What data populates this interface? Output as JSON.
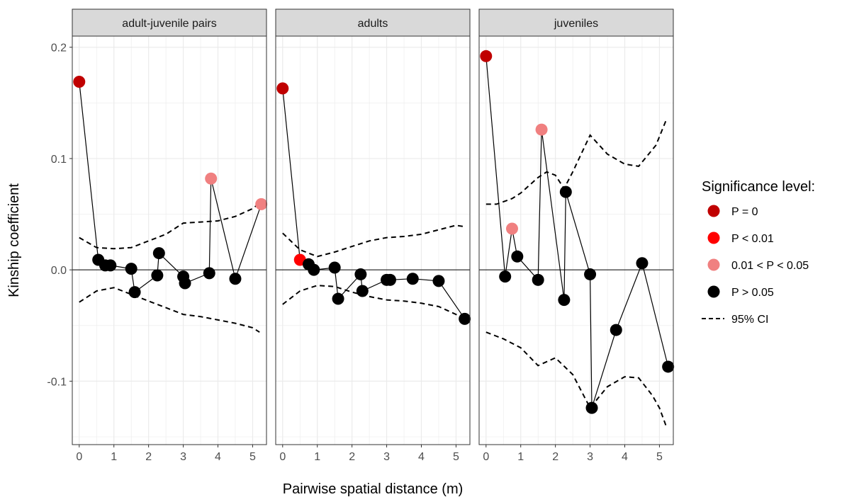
{
  "chart_data": {
    "type": "scatter",
    "xlabel": "Pairwise spatial distance (m)",
    "ylabel": "Kinship coefficient",
    "xlim": [
      -0.2,
      5.4
    ],
    "ylim": [
      -0.157,
      0.21
    ],
    "x_ticks": [
      0,
      1,
      2,
      3,
      4,
      5
    ],
    "x_tick_labels": [
      "0",
      "1",
      "2",
      "3",
      "4",
      "5"
    ],
    "y_ticks": [
      0.2,
      0.1,
      0.0,
      -0.1
    ],
    "y_tick_labels": [
      "0.2",
      "0.1",
      "0.0",
      "-0.1"
    ],
    "grid": true,
    "reference_line_y": 0,
    "legend": {
      "title": "Significance level:",
      "position": "right",
      "entries": [
        {
          "label": "P = 0",
          "color": "#c00000",
          "key": "p0"
        },
        {
          "label": "P < 0.01",
          "color": "#ff0000",
          "key": "p001"
        },
        {
          "label": "0.01 < P < 0.05",
          "color": "#f08080",
          "key": "p005"
        },
        {
          "label": "P > 0.05",
          "color": "#000000",
          "key": "ns"
        },
        {
          "label": "95% CI",
          "color": "#000000",
          "key": "ci"
        }
      ]
    },
    "panels": [
      {
        "title": "adult-juvenile pairs",
        "points": [
          {
            "x": 0.0,
            "y": 0.169,
            "sig": "p0"
          },
          {
            "x": 0.55,
            "y": 0.009,
            "sig": "ns"
          },
          {
            "x": 0.75,
            "y": 0.004,
            "sig": "ns"
          },
          {
            "x": 0.9,
            "y": 0.004,
            "sig": "ns"
          },
          {
            "x": 1.5,
            "y": 0.001,
            "sig": "ns"
          },
          {
            "x": 1.6,
            "y": -0.02,
            "sig": "ns"
          },
          {
            "x": 2.25,
            "y": -0.005,
            "sig": "ns"
          },
          {
            "x": 2.3,
            "y": 0.015,
            "sig": "ns"
          },
          {
            "x": 3.0,
            "y": -0.006,
            "sig": "ns"
          },
          {
            "x": 3.05,
            "y": -0.012,
            "sig": "ns"
          },
          {
            "x": 3.75,
            "y": -0.003,
            "sig": "ns"
          },
          {
            "x": 3.8,
            "y": 0.082,
            "sig": "p005"
          },
          {
            "x": 4.5,
            "y": -0.008,
            "sig": "ns"
          },
          {
            "x": 5.25,
            "y": 0.059,
            "sig": "p005"
          }
        ],
        "ci_upper": [
          [
            0.0,
            0.029
          ],
          [
            0.5,
            0.02
          ],
          [
            1.0,
            0.019
          ],
          [
            1.5,
            0.02
          ],
          [
            2.0,
            0.026
          ],
          [
            2.5,
            0.032
          ],
          [
            3.0,
            0.042
          ],
          [
            3.5,
            0.043
          ],
          [
            4.0,
            0.044
          ],
          [
            4.5,
            0.048
          ],
          [
            5.0,
            0.055
          ],
          [
            5.2,
            0.06
          ]
        ],
        "ci_lower": [
          [
            0.0,
            -0.029
          ],
          [
            0.5,
            -0.019
          ],
          [
            1.0,
            -0.016
          ],
          [
            1.5,
            -0.022
          ],
          [
            2.0,
            -0.028
          ],
          [
            2.5,
            -0.034
          ],
          [
            3.0,
            -0.04
          ],
          [
            3.5,
            -0.042
          ],
          [
            4.0,
            -0.045
          ],
          [
            4.5,
            -0.048
          ],
          [
            5.0,
            -0.052
          ],
          [
            5.2,
            -0.056
          ]
        ]
      },
      {
        "title": "adults",
        "points": [
          {
            "x": 0.0,
            "y": 0.163,
            "sig": "p0"
          },
          {
            "x": 0.5,
            "y": 0.009,
            "sig": "p001"
          },
          {
            "x": 0.75,
            "y": 0.005,
            "sig": "ns"
          },
          {
            "x": 0.9,
            "y": 0.0,
            "sig": "ns"
          },
          {
            "x": 1.5,
            "y": 0.002,
            "sig": "ns"
          },
          {
            "x": 1.6,
            "y": -0.026,
            "sig": "ns"
          },
          {
            "x": 2.25,
            "y": -0.004,
            "sig": "ns"
          },
          {
            "x": 2.3,
            "y": -0.019,
            "sig": "ns"
          },
          {
            "x": 3.0,
            "y": -0.009,
            "sig": "ns"
          },
          {
            "x": 3.1,
            "y": -0.009,
            "sig": "ns"
          },
          {
            "x": 3.75,
            "y": -0.008,
            "sig": "ns"
          },
          {
            "x": 4.5,
            "y": -0.01,
            "sig": "ns"
          },
          {
            "x": 5.25,
            "y": -0.044,
            "sig": "ns"
          }
        ],
        "ci_upper": [
          [
            0.0,
            0.033
          ],
          [
            0.5,
            0.018
          ],
          [
            1.0,
            0.012
          ],
          [
            1.5,
            0.016
          ],
          [
            2.0,
            0.021
          ],
          [
            2.5,
            0.026
          ],
          [
            3.0,
            0.029
          ],
          [
            3.5,
            0.03
          ],
          [
            4.0,
            0.032
          ],
          [
            4.5,
            0.036
          ],
          [
            5.0,
            0.04
          ],
          [
            5.2,
            0.039
          ]
        ],
        "ci_lower": [
          [
            0.0,
            -0.031
          ],
          [
            0.5,
            -0.019
          ],
          [
            1.0,
            -0.014
          ],
          [
            1.5,
            -0.015
          ],
          [
            2.0,
            -0.02
          ],
          [
            2.5,
            -0.024
          ],
          [
            3.0,
            -0.027
          ],
          [
            3.5,
            -0.028
          ],
          [
            4.0,
            -0.03
          ],
          [
            4.5,
            -0.033
          ],
          [
            5.0,
            -0.04
          ],
          [
            5.2,
            -0.044
          ]
        ]
      },
      {
        "title": "juveniles",
        "points": [
          {
            "x": 0.0,
            "y": 0.192,
            "sig": "p0"
          },
          {
            "x": 0.55,
            "y": -0.006,
            "sig": "ns"
          },
          {
            "x": 0.75,
            "y": 0.037,
            "sig": "p005"
          },
          {
            "x": 0.9,
            "y": 0.012,
            "sig": "ns"
          },
          {
            "x": 1.5,
            "y": -0.009,
            "sig": "ns"
          },
          {
            "x": 1.6,
            "y": 0.126,
            "sig": "p005"
          },
          {
            "x": 2.25,
            "y": -0.027,
            "sig": "ns"
          },
          {
            "x": 2.3,
            "y": 0.07,
            "sig": "ns"
          },
          {
            "x": 3.0,
            "y": -0.004,
            "sig": "ns"
          },
          {
            "x": 3.05,
            "y": -0.124,
            "sig": "ns"
          },
          {
            "x": 3.75,
            "y": -0.054,
            "sig": "ns"
          },
          {
            "x": 4.5,
            "y": 0.006,
            "sig": "ns"
          },
          {
            "x": 5.25,
            "y": -0.087,
            "sig": "ns"
          }
        ],
        "ci_upper": [
          [
            0.0,
            0.059
          ],
          [
            0.3,
            0.059
          ],
          [
            0.75,
            0.064
          ],
          [
            1.0,
            0.069
          ],
          [
            1.5,
            0.083
          ],
          [
            1.75,
            0.088
          ],
          [
            2.0,
            0.085
          ],
          [
            2.25,
            0.073
          ],
          [
            2.5,
            0.088
          ],
          [
            3.0,
            0.121
          ],
          [
            3.5,
            0.104
          ],
          [
            4.0,
            0.095
          ],
          [
            4.4,
            0.093
          ],
          [
            4.9,
            0.112
          ],
          [
            5.2,
            0.135
          ]
        ],
        "ci_lower": [
          [
            0.0,
            -0.056
          ],
          [
            0.5,
            -0.062
          ],
          [
            1.0,
            -0.07
          ],
          [
            1.5,
            -0.086
          ],
          [
            2.0,
            -0.079
          ],
          [
            2.5,
            -0.094
          ],
          [
            3.0,
            -0.124
          ],
          [
            3.5,
            -0.105
          ],
          [
            4.0,
            -0.096
          ],
          [
            4.4,
            -0.097
          ],
          [
            4.8,
            -0.113
          ],
          [
            5.0,
            -0.124
          ],
          [
            5.2,
            -0.141
          ]
        ]
      }
    ]
  }
}
